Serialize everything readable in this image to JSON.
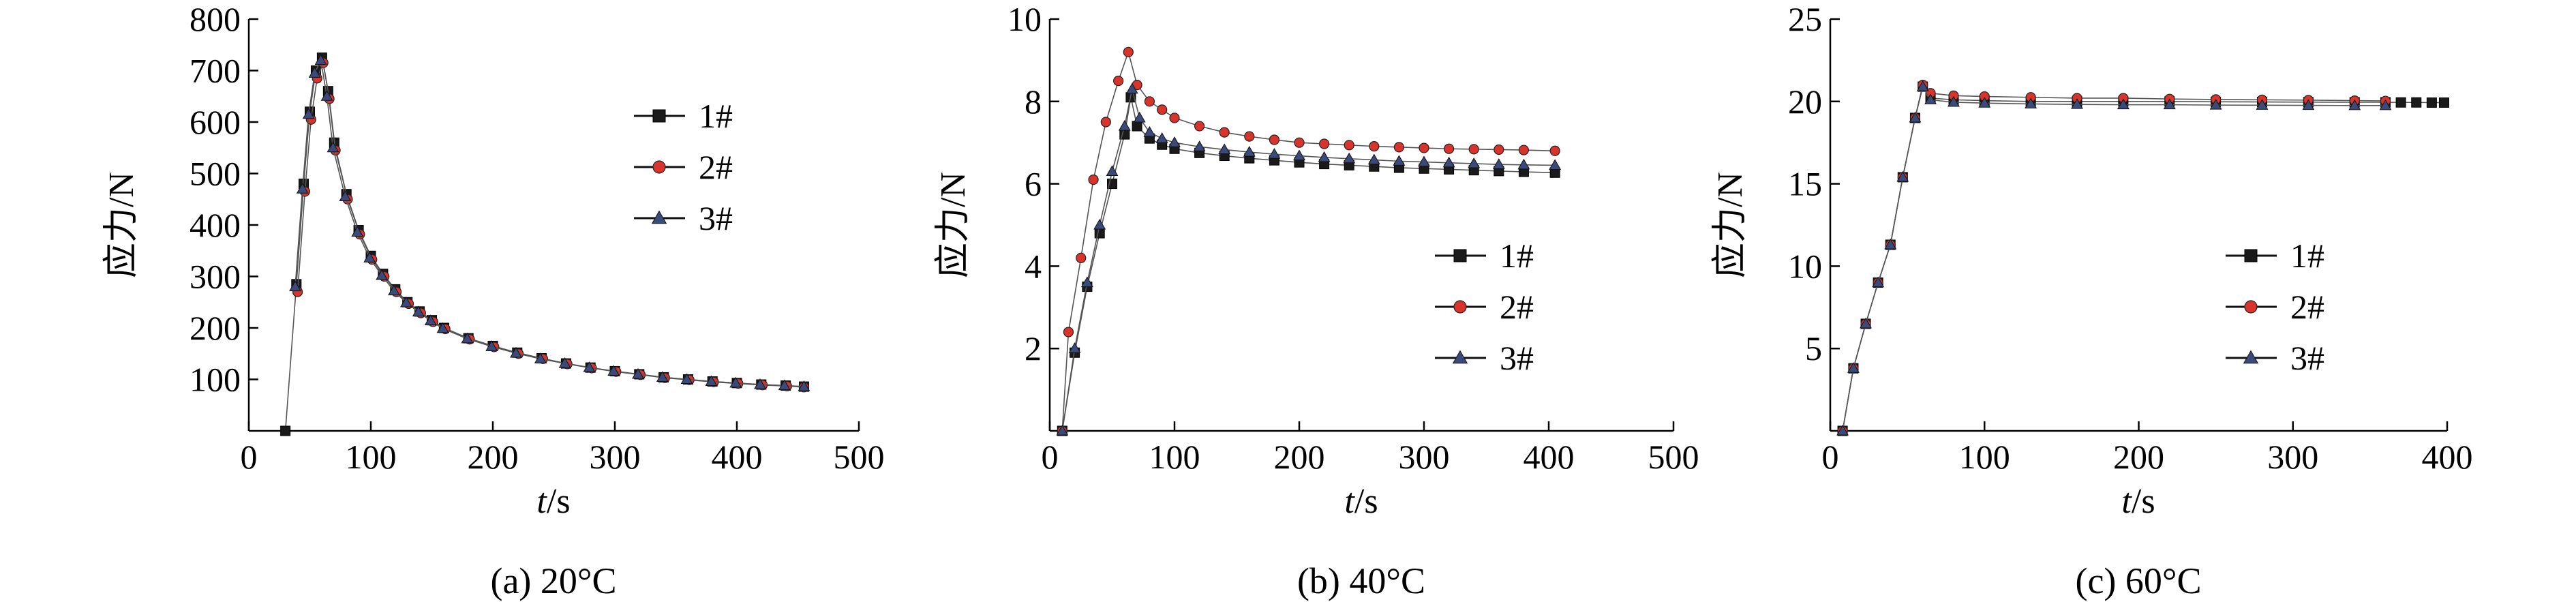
{
  "chart_data": [
    {
      "type": "line",
      "caption": "(a) 20°C",
      "xlabel_italic": "t",
      "xlabel_unit": "/s",
      "ylabel": "应力/N",
      "xlim": [
        0,
        500
      ],
      "ylim": [
        0,
        800
      ],
      "xticks": [
        0,
        100,
        200,
        300,
        400,
        500
      ],
      "yticks": [
        100,
        200,
        300,
        400,
        500,
        600,
        700,
        800
      ],
      "legend": [
        "1#",
        "2#",
        "3#"
      ],
      "series": [
        {
          "name": "1#",
          "marker": "square",
          "color": "#1a1a1a",
          "x": [
            30,
            39,
            45,
            50,
            55,
            60,
            65,
            70,
            80,
            90,
            100,
            110,
            120,
            130,
            140,
            150,
            160,
            180,
            200,
            220,
            240,
            260,
            280,
            300,
            320,
            340,
            360,
            380,
            400,
            420,
            440,
            455
          ],
          "y": [
            0,
            285,
            480,
            620,
            700,
            725,
            660,
            560,
            460,
            390,
            340,
            305,
            275,
            250,
            232,
            215,
            200,
            180,
            165,
            152,
            141,
            131,
            123,
            116,
            110,
            104,
            100,
            96,
            93,
            90,
            88,
            86
          ]
        },
        {
          "name": "2#",
          "marker": "circle",
          "color": "#d9342b",
          "x": [
            40,
            46,
            51,
            56,
            61,
            66,
            71,
            81,
            91,
            101,
            111,
            121,
            131,
            141,
            151,
            161,
            181,
            201,
            221,
            241,
            261,
            281,
            301,
            321,
            341,
            361,
            381,
            401,
            421,
            441,
            455
          ],
          "y": [
            270,
            465,
            605,
            685,
            715,
            645,
            545,
            450,
            382,
            333,
            300,
            270,
            247,
            229,
            212,
            198,
            178,
            163,
            150,
            140,
            130,
            122,
            115,
            109,
            103,
            99,
            95,
            92,
            89,
            87,
            85
          ]
        },
        {
          "name": "3#",
          "marker": "triangle",
          "color": "#3a4a7a",
          "x": [
            38,
            44,
            49,
            54,
            59,
            64,
            69,
            79,
            89,
            99,
            109,
            119,
            129,
            139,
            149,
            159,
            179,
            199,
            219,
            239,
            259,
            279,
            299,
            319,
            339,
            359,
            379,
            399,
            419,
            439,
            455
          ],
          "y": [
            280,
            470,
            615,
            695,
            720,
            650,
            550,
            455,
            386,
            336,
            302,
            272,
            249,
            231,
            214,
            199,
            179,
            164,
            151,
            140,
            131,
            123,
            116,
            110,
            104,
            100,
            96,
            93,
            90,
            88,
            86
          ]
        }
      ]
    },
    {
      "type": "line",
      "caption": "(b) 40°C",
      "xlabel_italic": "t",
      "xlabel_unit": "/s",
      "ylabel": "应力/N",
      "xlim": [
        0,
        500
      ],
      "ylim": [
        0,
        10
      ],
      "xticks": [
        0,
        100,
        200,
        300,
        400,
        500
      ],
      "yticks": [
        2,
        4,
        6,
        8,
        10
      ],
      "legend": [
        "1#",
        "2#",
        "3#"
      ],
      "series": [
        {
          "name": "1#",
          "marker": "square",
          "color": "#1a1a1a",
          "x": [
            10,
            20,
            30,
            40,
            50,
            60,
            65,
            70,
            80,
            90,
            100,
            120,
            140,
            160,
            180,
            200,
            220,
            240,
            260,
            280,
            300,
            320,
            340,
            360,
            380,
            405
          ],
          "y": [
            0,
            1.9,
            3.5,
            4.8,
            6.0,
            7.2,
            8.1,
            7.4,
            7.1,
            6.95,
            6.85,
            6.75,
            6.68,
            6.62,
            6.57,
            6.52,
            6.48,
            6.45,
            6.42,
            6.39,
            6.37,
            6.35,
            6.33,
            6.31,
            6.29,
            6.27
          ]
        },
        {
          "name": "2#",
          "marker": "circle",
          "color": "#d9342b",
          "x": [
            10,
            15,
            25,
            35,
            45,
            55,
            63,
            70,
            80,
            90,
            100,
            120,
            140,
            160,
            180,
            200,
            220,
            240,
            260,
            280,
            300,
            320,
            340,
            360,
            380,
            405
          ],
          "y": [
            0,
            2.4,
            4.2,
            6.1,
            7.5,
            8.5,
            9.2,
            8.4,
            8.0,
            7.8,
            7.6,
            7.4,
            7.25,
            7.15,
            7.07,
            7.0,
            6.97,
            6.94,
            6.91,
            6.89,
            6.87,
            6.85,
            6.84,
            6.83,
            6.82,
            6.8
          ]
        },
        {
          "name": "3#",
          "marker": "triangle",
          "color": "#3a4a7a",
          "x": [
            10,
            20,
            30,
            40,
            50,
            60,
            66,
            72,
            80,
            90,
            100,
            120,
            140,
            160,
            180,
            200,
            220,
            240,
            260,
            280,
            300,
            320,
            340,
            360,
            380,
            405
          ],
          "y": [
            0,
            2.0,
            3.6,
            5.0,
            6.3,
            7.4,
            8.3,
            7.6,
            7.25,
            7.1,
            7.0,
            6.9,
            6.83,
            6.77,
            6.72,
            6.68,
            6.64,
            6.61,
            6.58,
            6.55,
            6.53,
            6.51,
            6.49,
            6.47,
            6.46,
            6.45
          ]
        }
      ]
    },
    {
      "type": "line",
      "caption": "(c) 60°C",
      "xlabel_italic": "t",
      "xlabel_unit": "/s",
      "ylabel": "应力/N",
      "xlim": [
        0,
        400
      ],
      "ylim": [
        0,
        25
      ],
      "xticks": [
        0,
        100,
        200,
        300,
        400
      ],
      "yticks": [
        5,
        10,
        15,
        20,
        25
      ],
      "legend": [
        "1#",
        "2#",
        "3#"
      ],
      "series": [
        {
          "name": "1#",
          "marker": "square",
          "color": "#1a1a1a",
          "x": [
            8,
            15,
            23,
            31,
            39,
            47,
            55,
            60,
            65,
            80,
            100,
            130,
            160,
            190,
            220,
            250,
            280,
            310,
            340,
            360,
            370,
            380,
            390,
            398
          ],
          "y": [
            0,
            3.8,
            6.5,
            9.0,
            11.3,
            15.4,
            19.0,
            20.9,
            20.2,
            20.1,
            20.05,
            20.0,
            20.0,
            20.0,
            20.0,
            19.98,
            19.97,
            19.96,
            19.95,
            19.95,
            19.94,
            19.94,
            19.93,
            19.93
          ]
        },
        {
          "name": "2#",
          "marker": "circle",
          "color": "#d9342b",
          "x": [
            8,
            15,
            23,
            31,
            39,
            47,
            55,
            60,
            65,
            80,
            100,
            130,
            160,
            190,
            220,
            250,
            280,
            310,
            340,
            360
          ],
          "y": [
            0,
            3.8,
            6.5,
            9.0,
            11.3,
            15.4,
            19.0,
            21.0,
            20.5,
            20.35,
            20.3,
            20.25,
            20.2,
            20.2,
            20.15,
            20.12,
            20.1,
            20.08,
            20.05,
            20.03
          ]
        },
        {
          "name": "3#",
          "marker": "triangle",
          "color": "#3a4a7a",
          "x": [
            8,
            15,
            23,
            31,
            39,
            47,
            55,
            60,
            65,
            80,
            100,
            130,
            160,
            190,
            220,
            250,
            280,
            310,
            340,
            360
          ],
          "y": [
            0,
            3.8,
            6.5,
            9.0,
            11.3,
            15.4,
            19.0,
            20.9,
            20.1,
            19.95,
            19.9,
            19.85,
            19.82,
            19.8,
            19.8,
            19.78,
            19.77,
            19.76,
            19.75,
            19.75
          ]
        }
      ]
    }
  ]
}
